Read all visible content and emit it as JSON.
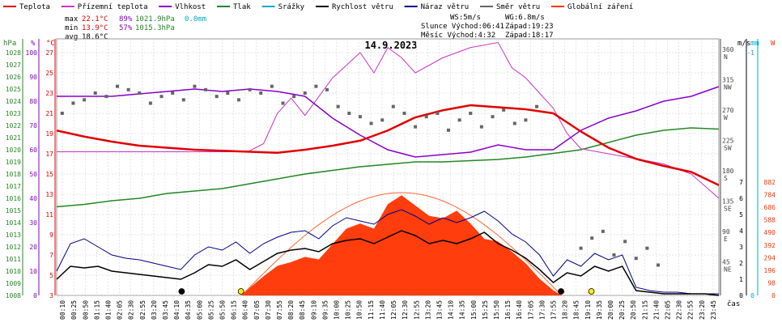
{
  "colors": {
    "temp": "#e00000",
    "apparent": "#cc33cc",
    "humidity": "#8800cc",
    "pressure": "#228822",
    "precip": "#00aacc",
    "wind_speed": "#000000",
    "gust": "#000088",
    "wind_dir": "#666666",
    "radiation": "#ff3300",
    "sun_marker": "#ffee00",
    "grid": "#cccccc"
  },
  "legend": [
    {
      "key": "temp",
      "label": "Teplota"
    },
    {
      "key": "apparent",
      "label": "Přízemní teplota"
    },
    {
      "key": "humidity",
      "label": "Vlhkost"
    },
    {
      "key": "pressure",
      "label": "Tlak"
    },
    {
      "key": "precip",
      "label": "Srážky"
    },
    {
      "key": "wind_speed",
      "label": "Rychlost větru"
    },
    {
      "key": "gust",
      "label": "Náraz větru"
    },
    {
      "key": "wind_dir",
      "label": "Směr větru"
    },
    {
      "key": "radiation",
      "label": "Globální záření"
    }
  ],
  "stats": {
    "max_label": "max",
    "min_label": "min",
    "avg_label": "avg",
    "max_temp": "22.1°C",
    "max_hum": "89%",
    "max_press": "1021.9hPa",
    "max_precip": "0.0mm",
    "min_temp": "13.9°C",
    "min_hum": "57%",
    "min_press": "1015.3hPa",
    "avg_temp": "18.6°C"
  },
  "info": {
    "ws": "WS:5m/s",
    "wg": "WG:6.8m/s",
    "sun": "Slunce Východ:06:41",
    "sun_set": "Západ:19:23",
    "moon": "Měsíc Východ:4:32",
    "moon_set": "Západ:18:17"
  },
  "date": "14.9.2023",
  "units": {
    "hpa": "hPa",
    "pct": "%",
    "degc": "°C",
    "ms": "m/s",
    "mm": "mm",
    "w": "W",
    "cas": "čas"
  },
  "chart_data": {
    "type": "line",
    "title": "14.9.2023",
    "xlabel": "čas",
    "x_ticks": [
      "00:10",
      "00:25",
      "00:50",
      "01:15",
      "01:40",
      "02:05",
      "02:30",
      "02:55",
      "03:20",
      "03:45",
      "04:10",
      "04:35",
      "05:00",
      "05:25",
      "05:50",
      "06:15",
      "06:40",
      "07:05",
      "07:30",
      "07:55",
      "08:20",
      "08:45",
      "09:10",
      "09:35",
      "10:00",
      "10:25",
      "10:50",
      "11:15",
      "11:40",
      "12:05",
      "12:30",
      "12:55",
      "13:20",
      "13:45",
      "14:10",
      "14:35",
      "15:00",
      "15:25",
      "15:50",
      "16:15",
      "16:40",
      "17:05",
      "17:30",
      "17:55",
      "18:20",
      "18:45",
      "19:10",
      "19:35",
      "20:00",
      "20:25",
      "20:50",
      "21:15",
      "21:40",
      "22:05",
      "22:30",
      "22:55",
      "23:20",
      "23:45"
    ],
    "axes": {
      "pressure_hpa": {
        "ticks": [
          1008,
          1009,
          1010,
          1011,
          1012,
          1013,
          1014,
          1015,
          1016,
          1017,
          1018,
          1019,
          1020,
          1021,
          1022,
          1023,
          1024,
          1025,
          1026,
          1027,
          1028
        ]
      },
      "humidity_pct": {
        "ticks": [
          0,
          10,
          20,
          30,
          40,
          50,
          60,
          70,
          80,
          90,
          100
        ]
      },
      "temperature_c": {
        "ticks": [
          3,
          5,
          7,
          9,
          11,
          13,
          15,
          17,
          19,
          21,
          23,
          25,
          27
        ]
      },
      "wind_dir_deg": {
        "ticks": [
          {
            "v": 45,
            "d": "NE"
          },
          {
            "v": 90,
            "d": "E"
          },
          {
            "v": 135,
            "d": "SE"
          },
          {
            "v": 180,
            "d": "S"
          },
          {
            "v": 225,
            "d": "SW"
          },
          {
            "v": 270,
            "d": "W"
          },
          {
            "v": 315,
            "d": "NW"
          },
          {
            "v": 360,
            "d": "N"
          }
        ]
      },
      "wind_ms": {
        "ticks": [
          0,
          1,
          2,
          3,
          4,
          5,
          6,
          7
        ]
      },
      "precip_mm": {
        "ticks": [
          -1,
          0
        ]
      },
      "radiation_w": {
        "ticks": [
          0,
          98,
          196,
          294,
          392,
          490,
          588,
          686,
          784,
          882
        ]
      }
    },
    "series": [
      {
        "name": "Teplota",
        "unit": "°C",
        "x": [
          0,
          1,
          2,
          3,
          4,
          5,
          6,
          7,
          8,
          9,
          10,
          11,
          12,
          13,
          14,
          15,
          16,
          17,
          18,
          19,
          20,
          21,
          22,
          23,
          24
        ],
        "y": [
          19.3,
          18.7,
          18.2,
          17.8,
          17.6,
          17.4,
          17.3,
          17.2,
          17.1,
          17.4,
          17.8,
          18.3,
          19.3,
          20.6,
          21.3,
          21.8,
          21.6,
          21.4,
          21.0,
          19.2,
          17.6,
          16.5,
          15.8,
          15.2,
          13.9
        ]
      },
      {
        "name": "Přízemní teplota",
        "unit": "°C",
        "x": [
          0,
          3,
          6,
          6.5,
          7,
          7.5,
          8,
          8.5,
          9,
          10,
          11,
          11.5,
          12,
          12.5,
          13,
          14,
          15,
          16,
          16.5,
          17,
          17.5,
          18,
          18.5,
          19,
          20,
          21,
          22,
          23,
          24
        ],
        "y": [
          17.2,
          17.2,
          17.2,
          17.2,
          17.3,
          18.0,
          21.0,
          22.5,
          20.8,
          24.5,
          27.0,
          25.0,
          27.5,
          26.5,
          25.0,
          26.5,
          27.5,
          28.0,
          25.5,
          24.5,
          23.0,
          21.5,
          19.0,
          17.5,
          17.0,
          16.5,
          16.0,
          15.0,
          12.6
        ]
      },
      {
        "name": "Vlhkost",
        "unit": "%",
        "x": [
          0,
          1,
          2,
          3,
          4,
          5,
          6,
          7,
          8,
          9,
          10,
          11,
          12,
          13,
          14,
          15,
          16,
          17,
          18,
          19,
          20,
          21,
          22,
          23,
          24
        ],
        "y": [
          82,
          82,
          82,
          83,
          84,
          85,
          84,
          85,
          84,
          82,
          73,
          66,
          60,
          57,
          58,
          59,
          62,
          60,
          60,
          68,
          73,
          76,
          80,
          82,
          86
        ]
      },
      {
        "name": "Tlak",
        "unit": "hPa",
        "x": [
          0,
          1,
          2,
          3,
          4,
          5,
          6,
          7,
          8,
          9,
          10,
          11,
          12,
          13,
          14,
          15,
          16,
          17,
          18,
          19,
          20,
          21,
          22,
          23,
          24
        ],
        "y": [
          1015.3,
          1015.5,
          1015.8,
          1016.0,
          1016.4,
          1016.6,
          1016.8,
          1017.2,
          1017.6,
          1018.0,
          1018.3,
          1018.6,
          1018.8,
          1019.0,
          1019.0,
          1019.1,
          1019.2,
          1019.4,
          1019.7,
          1020.0,
          1020.6,
          1021.2,
          1021.6,
          1021.8,
          1021.7
        ]
      },
      {
        "name": "Rychlost větru",
        "unit": "m/s",
        "x": [
          0,
          0.5,
          1,
          1.5,
          2,
          2.5,
          3,
          3.5,
          4,
          4.5,
          5,
          5.5,
          6,
          6.5,
          7,
          7.5,
          8,
          8.5,
          9,
          9.5,
          10,
          10.5,
          11,
          11.5,
          12,
          12.5,
          13,
          13.5,
          14,
          14.5,
          15,
          15.5,
          16,
          16.5,
          17,
          17.5,
          18,
          18.5,
          19,
          19.5,
          20,
          20.5,
          21,
          21.5,
          22,
          22.5,
          23,
          23.5,
          24
        ],
        "y": [
          1.0,
          1.8,
          1.7,
          1.8,
          1.5,
          1.4,
          1.3,
          1.2,
          1.1,
          1.0,
          1.4,
          1.9,
          1.8,
          2.2,
          1.6,
          2.1,
          2.6,
          2.8,
          2.9,
          2.7,
          3.2,
          3.4,
          3.5,
          3.2,
          3.6,
          4.0,
          3.7,
          3.2,
          3.4,
          3.2,
          3.5,
          3.9,
          3.2,
          2.8,
          2.3,
          1.6,
          0.8,
          1.4,
          1.2,
          1.8,
          1.5,
          1.8,
          0.3,
          0.2,
          0.1,
          0.1,
          0.1,
          0.1,
          0.0
        ]
      },
      {
        "name": "Náraz větru",
        "unit": "m/s",
        "x": [
          0,
          0.5,
          1,
          1.5,
          2,
          2.5,
          3,
          3.5,
          4,
          4.5,
          5,
          5.5,
          6,
          6.5,
          7,
          7.5,
          8,
          8.5,
          9,
          9.5,
          10,
          10.5,
          11,
          11.5,
          12,
          12.5,
          13,
          13.5,
          14,
          14.5,
          15,
          15.5,
          16,
          16.5,
          17,
          17.5,
          18,
          18.5,
          19,
          19.5,
          20,
          20.5,
          21,
          21.5,
          22,
          22.5,
          23,
          23.5,
          24
        ],
        "y": [
          1.5,
          3.2,
          3.5,
          3.0,
          2.5,
          2.3,
          2.2,
          2.0,
          1.8,
          1.6,
          2.5,
          3.0,
          2.8,
          3.3,
          2.6,
          3.2,
          3.6,
          3.9,
          4.0,
          3.5,
          4.3,
          4.8,
          4.6,
          4.4,
          5.0,
          5.3,
          4.9,
          4.4,
          4.8,
          4.5,
          4.8,
          5.2,
          4.6,
          3.8,
          3.3,
          2.5,
          1.2,
          2.2,
          1.8,
          2.6,
          2.2,
          2.5,
          0.5,
          0.3,
          0.2,
          0.2,
          0.1,
          0.1,
          0.1
        ]
      },
      {
        "name": "Směr větru",
        "unit": "°",
        "type": "scatter",
        "x": [
          0.2,
          0.6,
          1.0,
          1.4,
          1.8,
          2.2,
          2.6,
          3.0,
          3.4,
          3.8,
          4.2,
          4.6,
          5.0,
          5.4,
          5.8,
          6.2,
          6.6,
          7.0,
          7.4,
          7.8,
          8.2,
          8.6,
          9.0,
          9.4,
          9.8,
          10.2,
          10.6,
          11.0,
          11.4,
          11.8,
          12.2,
          12.6,
          13.0,
          13.4,
          13.8,
          14.2,
          14.6,
          15.0,
          15.4,
          15.8,
          16.2,
          16.6,
          17.0,
          17.4,
          19.0,
          19.4,
          19.8,
          20.2,
          20.6,
          21.0,
          21.4,
          21.8
        ],
        "y": [
          270,
          285,
          290,
          300,
          295,
          310,
          305,
          300,
          285,
          295,
          300,
          290,
          310,
          305,
          295,
          300,
          290,
          305,
          300,
          310,
          285,
          295,
          300,
          310,
          305,
          280,
          270,
          265,
          255,
          260,
          280,
          270,
          250,
          265,
          270,
          245,
          260,
          270,
          250,
          265,
          275,
          255,
          260,
          280,
          70,
          85,
          95,
          60,
          80,
          55,
          70,
          45
        ]
      },
      {
        "name": "Globální záření",
        "unit": "W",
        "type": "area",
        "x": [
          6.7,
          7.0,
          7.5,
          8.0,
          8.5,
          9.0,
          9.5,
          10.0,
          10.5,
          11.0,
          11.5,
          12.0,
          12.5,
          13.0,
          13.5,
          14.0,
          14.5,
          15.0,
          15.5,
          16.0,
          16.5,
          17.0,
          17.5,
          18.0,
          18.3
        ],
        "y": [
          0,
          60,
          150,
          230,
          260,
          300,
          280,
          400,
          520,
          560,
          520,
          710,
          780,
          700,
          620,
          600,
          660,
          560,
          440,
          420,
          340,
          250,
          130,
          40,
          0
        ]
      }
    ]
  }
}
